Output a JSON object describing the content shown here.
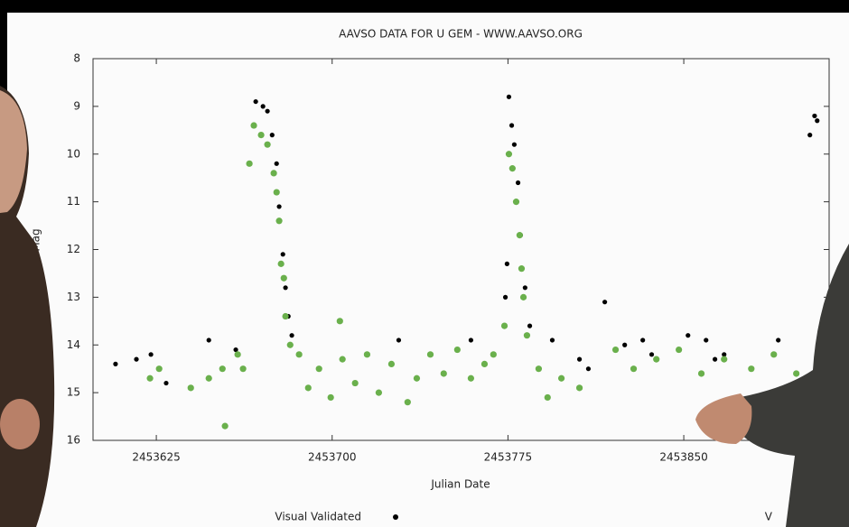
{
  "chart_data": {
    "type": "scatter",
    "title": "AAVSO DATA FOR U GEM - WWW.AAVSO.ORG",
    "x_label": "Julian Date",
    "y_label": "Mag",
    "xlim": [
      2453598,
      2453912
    ],
    "ylim": [
      16,
      8
    ],
    "xticks": [
      2453625,
      2453700,
      2453775,
      2453850
    ],
    "yticks": [
      8,
      9,
      10,
      11,
      12,
      13,
      14,
      15,
      16
    ],
    "legend": "bottom",
    "series": [
      {
        "name": "Visual Validated",
        "color": "#000000",
        "x": [
          2453607.6,
          2453616.5,
          2453622.7,
          2453629.2,
          2453647.4,
          2453658.9,
          2453667.4,
          2453670.5,
          2453672.4,
          2453674.4,
          2453676.3,
          2453677.4,
          2453679.0,
          2453680.1,
          2453681.3,
          2453682.8,
          2453728.4,
          2453759.2,
          2453773.9,
          2453774.6,
          2453775.4,
          2453776.6,
          2453777.7,
          2453779.3,
          2453780.4,
          2453782.3,
          2453784.3,
          2453793.9,
          2453805.5,
          2453809.3,
          2453816.3,
          2453824.8,
          2453832.5,
          2453836.3,
          2453851.8,
          2453859.5,
          2453863.3,
          2453867.2,
          2453890.3,
          2453903.8,
          2453905.8,
          2453906.9
        ],
        "values": [
          14.4,
          14.3,
          14.2,
          14.8,
          13.9,
          14.1,
          8.9,
          9.0,
          9.1,
          9.6,
          10.2,
          11.1,
          12.1,
          12.8,
          13.4,
          13.8,
          13.9,
          13.9,
          13.0,
          12.3,
          8.8,
          9.4,
          9.8,
          10.6,
          11.7,
          12.8,
          13.6,
          13.9,
          14.3,
          14.5,
          13.1,
          14.0,
          13.9,
          14.2,
          13.8,
          13.9,
          14.3,
          14.2,
          13.9,
          9.6,
          9.2,
          9.3
        ]
      },
      {
        "name": "V",
        "color": "#6ab04c",
        "x": [
          2453622.3,
          2453626.2,
          2453639.7,
          2453647.4,
          2453653.2,
          2453654.3,
          2453659.7,
          2453662.0,
          2453664.7,
          2453666.6,
          2453669.7,
          2453672.4,
          2453675.1,
          2453676.3,
          2453677.4,
          2453678.2,
          2453679.4,
          2453680.1,
          2453682.1,
          2453685.9,
          2453689.8,
          2453694.4,
          2453699.4,
          2453703.3,
          2453704.4,
          2453709.8,
          2453714.9,
          2453719.9,
          2453725.3,
          2453732.2,
          2453736.1,
          2453741.9,
          2453747.6,
          2453753.4,
          2453759.2,
          2453765.0,
          2453768.8,
          2453773.5,
          2453775.4,
          2453776.9,
          2453778.5,
          2453780.0,
          2453780.8,
          2453781.6,
          2453783.1,
          2453788.1,
          2453791.9,
          2453797.8,
          2453805.5,
          2453820.9,
          2453828.6,
          2453838.3,
          2453847.9,
          2453857.5,
          2453867.2,
          2453878.8,
          2453888.4,
          2453898.0
        ],
        "values": [
          14.7,
          14.5,
          14.9,
          14.7,
          14.5,
          15.7,
          14.2,
          14.5,
          10.2,
          9.4,
          9.6,
          9.8,
          10.4,
          10.8,
          11.4,
          12.3,
          12.6,
          13.4,
          14.0,
          14.2,
          14.9,
          14.5,
          15.1,
          13.5,
          14.3,
          14.8,
          14.2,
          15.0,
          14.4,
          15.2,
          14.7,
          14.2,
          14.6,
          14.1,
          14.7,
          14.4,
          14.2,
          13.6,
          10.0,
          10.3,
          11.0,
          11.7,
          12.4,
          13.0,
          13.8,
          14.5,
          15.1,
          14.7,
          14.9,
          14.1,
          14.5,
          14.3,
          14.1,
          14.6,
          14.3,
          14.5,
          14.2,
          14.6
        ]
      }
    ]
  }
}
